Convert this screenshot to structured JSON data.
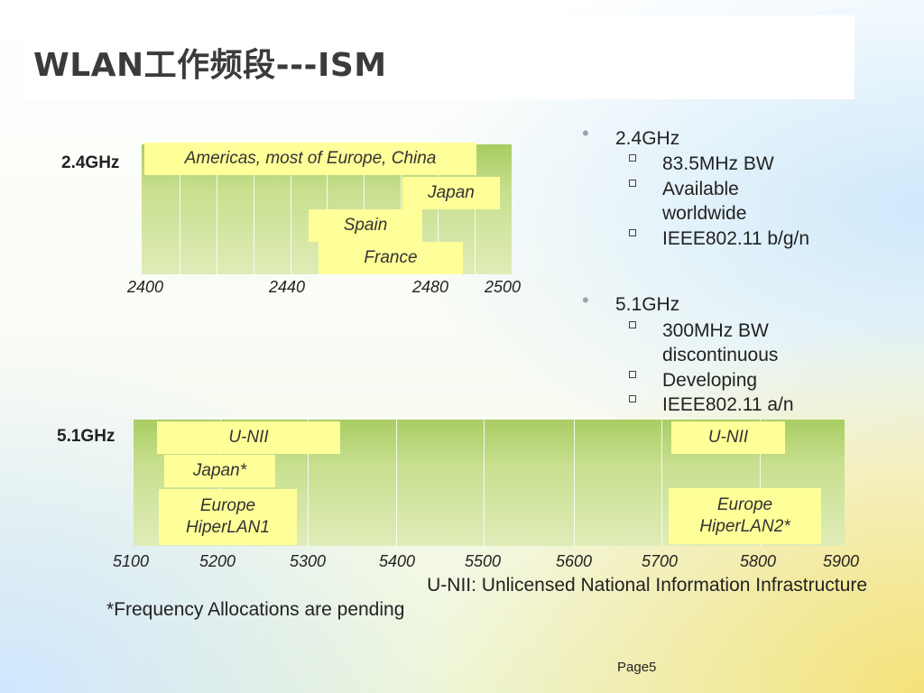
{
  "title": "WLAN工作频段---ISM",
  "band_24": {
    "label": "2.4GHz",
    "ticks": [
      "2400",
      "2440",
      "2480",
      "2500"
    ],
    "regions": [
      "Americas, most of Europe, China",
      "Japan",
      "Spain",
      "France"
    ]
  },
  "band_51": {
    "label": "5.1GHz",
    "ticks": [
      "5100",
      "5200",
      "5300",
      "5400",
      "5500",
      "5600",
      "5700",
      "5800",
      "5900"
    ],
    "unii_left": "U-NII",
    "unii_right": "U-NII",
    "japan": "Japan*",
    "europe1_line1": "Europe",
    "europe1_line2": "HiperLAN1",
    "europe2_line1": "Europe",
    "europe2_line2": "HiperLAN2*"
  },
  "bullets": [
    {
      "label": "2.4GHz",
      "subs": [
        "83.5MHz BW",
        "Available",
        "worldwide",
        "IEEE802.11 b/g/n"
      ]
    },
    {
      "label": "5.1GHz",
      "subs": [
        "300MHz BW",
        "discontinuous",
        "Developing",
        "IEEE802.11 a/n"
      ]
    }
  ],
  "footnote_unii": "U-NII: Unlicensed National Information Infrastructure",
  "footnote_pending": "*Frequency Allocations are pending",
  "page": "Page5",
  "colors": {
    "band_fill": "#ffff99",
    "chart_green": "#a9cc63",
    "title_text": "#3b3b3b"
  }
}
